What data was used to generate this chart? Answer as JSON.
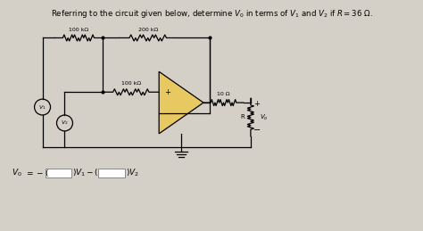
{
  "title_text": "Referring to the circuit given below, determine $V_0$ in terms of $V_1$ and $V_2$ if $R = 36$ Ω.",
  "bg_color": "#d4d0c8",
  "label_100k_top": "100 kΩ",
  "label_200k_top": "200 kΩ",
  "label_100k_mid": "100 kΩ",
  "label_10ohm": "10 Ω",
  "label_R": "R",
  "label_V1": "$V_1$",
  "label_V2": "$V_2$",
  "label_Vo": "$V_o$",
  "title_fontsize": 6.2,
  "circuit_lw": 0.9
}
